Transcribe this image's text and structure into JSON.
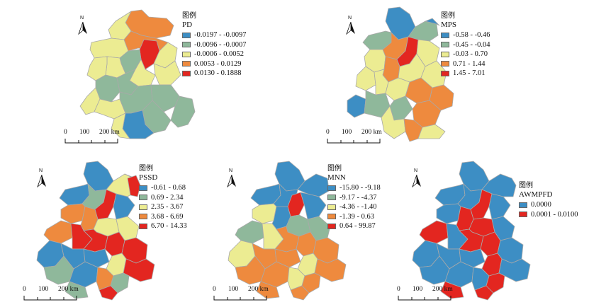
{
  "colors": {
    "blue": "#3d8ec4",
    "green": "#8fb89b",
    "yellow": "#ecec92",
    "orange": "#ee8a3e",
    "red": "#e32620",
    "border": "#a9a9a9"
  },
  "north_label": "N",
  "scale": {
    "ticks": [
      "0",
      "100",
      "200 km"
    ]
  },
  "panels": [
    {
      "id": "pd",
      "legend_title": "图例",
      "variable": "PD",
      "classes": [
        {
          "label": "-0.0197 - -0.0097",
          "color": "#3d8ec4"
        },
        {
          "label": "-0.0096 - -0.0007",
          "color": "#8fb89b"
        },
        {
          "label": "-0.0006 - 0.0052",
          "color": "#ecec92"
        },
        {
          "label": "0.0053 - 0.0129",
          "color": "#ee8a3e"
        },
        {
          "label": "0.0130 - 0.1888",
          "color": "#e32620"
        }
      ]
    },
    {
      "id": "mps",
      "legend_title": "图例",
      "variable": "MPS",
      "classes": [
        {
          "label": "-0.58 - -0.46",
          "color": "#3d8ec4"
        },
        {
          "label": "-0.45 - -0.04",
          "color": "#8fb89b"
        },
        {
          "label": "-0.03 - 0.70",
          "color": "#ecec92"
        },
        {
          "label": "0.71 - 1.44",
          "color": "#ee8a3e"
        },
        {
          "label": "1.45 - 7.01",
          "color": "#e32620"
        }
      ]
    },
    {
      "id": "pssd",
      "legend_title": "图例",
      "variable": "PSSD",
      "classes": [
        {
          "label": "-0.61 - 0.68",
          "color": "#3d8ec4"
        },
        {
          "label": "0.69 - 2.34",
          "color": "#8fb89b"
        },
        {
          "label": "2.35 - 3.67",
          "color": "#ecec92"
        },
        {
          "label": "3.68 - 6.69",
          "color": "#ee8a3e"
        },
        {
          "label": "6.70 - 14.33",
          "color": "#e32620"
        }
      ]
    },
    {
      "id": "mnn",
      "legend_title": "图例",
      "variable": "MNN",
      "classes": [
        {
          "label": "-15.80 - -9.18",
          "color": "#3d8ec4"
        },
        {
          "label": "-9.17 - -4.37",
          "color": "#8fb89b"
        },
        {
          "label": "-4.36 - -1.40",
          "color": "#ecec92"
        },
        {
          "label": "-1.39 - 0.63",
          "color": "#ee8a3e"
        },
        {
          "label": "0.64 - 99.87",
          "color": "#e32620"
        }
      ]
    },
    {
      "id": "awmpfd",
      "legend_title": "图例",
      "variable": "AWMPFD",
      "classes": [
        {
          "label": "0.0000",
          "color": "#3d8ec4"
        },
        {
          "label": "0.0001 - 0.0100",
          "color": "#e32620"
        }
      ]
    }
  ]
}
